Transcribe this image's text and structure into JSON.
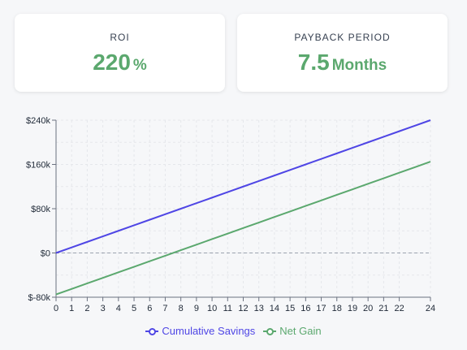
{
  "cards": [
    {
      "label": "ROI",
      "value": "220",
      "unit": "%"
    },
    {
      "label": "PAYBACK PERIOD",
      "value": "7.5",
      "unit": "Months"
    }
  ],
  "chart_data": {
    "type": "line",
    "x": [
      0,
      1,
      2,
      3,
      4,
      5,
      6,
      7,
      8,
      9,
      10,
      11,
      12,
      13,
      14,
      15,
      16,
      17,
      18,
      19,
      20,
      21,
      22,
      24
    ],
    "xlim": [
      0,
      24
    ],
    "ylim": [
      -80000,
      240000
    ],
    "yticks": [
      -80000,
      0,
      80000,
      160000,
      240000
    ],
    "ytick_labels": [
      "$-80k",
      "$0",
      "$80k",
      "$160k",
      "$240k"
    ],
    "grid": true,
    "legend_position": "bottom",
    "series": [
      {
        "name": "Cumulative Savings",
        "color": "#4f46e5",
        "values": [
          0,
          10000,
          20000,
          30000,
          40000,
          50000,
          60000,
          70000,
          80000,
          90000,
          100000,
          110000,
          120000,
          130000,
          140000,
          150000,
          160000,
          170000,
          180000,
          190000,
          200000,
          210000,
          220000,
          240000
        ]
      },
      {
        "name": "Net Gain",
        "color": "#5ba86e",
        "values": [
          -75000,
          -65000,
          -55000,
          -45000,
          -35000,
          -25000,
          -15000,
          -5000,
          5000,
          15000,
          25000,
          35000,
          45000,
          55000,
          65000,
          75000,
          85000,
          95000,
          105000,
          115000,
          125000,
          135000,
          145000,
          165000
        ]
      }
    ]
  }
}
